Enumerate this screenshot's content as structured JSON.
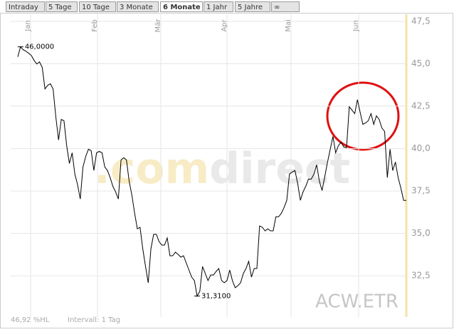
{
  "tabs": [
    "Intraday",
    "5 Tage",
    "10 Tage",
    "3 Monate",
    "6 Monate",
    "1 Jahr",
    "5 Jahre",
    "∞"
  ],
  "active_tab": "6 Monate",
  "chart_data": {
    "type": "line",
    "months": [
      "Jan",
      "Feb",
      "Mär",
      "Apr",
      "Mai",
      "Jun"
    ],
    "series": [
      {
        "color": "#000000",
        "values": [
          45.41,
          46.0,
          45.83,
          45.74,
          45.62,
          45.49,
          45.2,
          44.99,
          45.11,
          44.78,
          43.52,
          43.73,
          43.82,
          43.52,
          41.85,
          40.51,
          41.72,
          41.64,
          40.17,
          39.12,
          39.75,
          38.5,
          37.87,
          37.03,
          38.92,
          39.54,
          39.96,
          39.88,
          38.71,
          39.75,
          39.84,
          39.75,
          38.92,
          38.71,
          38.29,
          37.78,
          37.45,
          37.03,
          39.33,
          39.46,
          39.33,
          38.08,
          37.24,
          36.19,
          35.27,
          35.36,
          34.1,
          33.05,
          32.09,
          34.1,
          34.94,
          34.94,
          34.52,
          34.31,
          34.31,
          34.73,
          33.68,
          33.68,
          33.89,
          33.76,
          33.6,
          33.68,
          33.26,
          32.84,
          32.42,
          32.22,
          31.31,
          31.59,
          33.05,
          32.63,
          32.22,
          32.55,
          32.55,
          32.76,
          32.93,
          32.22,
          32.09,
          32.22,
          32.84,
          32.22,
          31.8,
          31.92,
          32.09,
          32.63,
          32.93,
          33.35,
          32.42,
          32.93,
          32.93,
          35.44,
          35.36,
          35.15,
          35.27,
          35.15,
          35.15,
          35.98,
          35.98,
          36.19,
          36.53,
          36.95,
          38.5,
          38.62,
          38.71,
          37.95,
          36.95,
          37.45,
          37.78,
          38.2,
          38.2,
          38.5,
          39.04,
          38.08,
          37.53,
          38.37,
          39.21,
          39.96,
          40.72,
          39.75,
          40.17,
          40.38,
          40.09,
          40.05,
          42.47,
          42.27,
          42.06,
          42.89,
          42.14,
          41.43,
          41.51,
          41.64,
          42.06,
          41.43,
          41.93,
          41.72,
          41.22,
          41.01,
          38.29,
          39.96,
          38.71,
          39.21,
          38.29,
          37.66,
          36.95,
          36.95
        ]
      }
    ],
    "ylim": [
      30.07,
      47.92
    ],
    "yticks": [
      {
        "value": 32.5,
        "label": "32,5"
      },
      {
        "value": 35,
        "label": "35,0"
      },
      {
        "value": 37.5,
        "label": "37,5"
      },
      {
        "value": 40,
        "label": "40,0"
      },
      {
        "value": 42.5,
        "label": "42,5"
      },
      {
        "value": 45,
        "label": "45,0"
      },
      {
        "value": 47.5,
        "label": "47,5"
      }
    ],
    "grid": true,
    "annotations": [
      {
        "value": 46.0,
        "label": "46,0000"
      },
      {
        "value": 31.31,
        "label": "31,3100"
      }
    ],
    "watermark": [
      ".com",
      "direct"
    ],
    "symbol": "ACW.ETR",
    "footer": [
      "46,92 %HL",
      "Intervall: 1 Tag"
    ]
  }
}
